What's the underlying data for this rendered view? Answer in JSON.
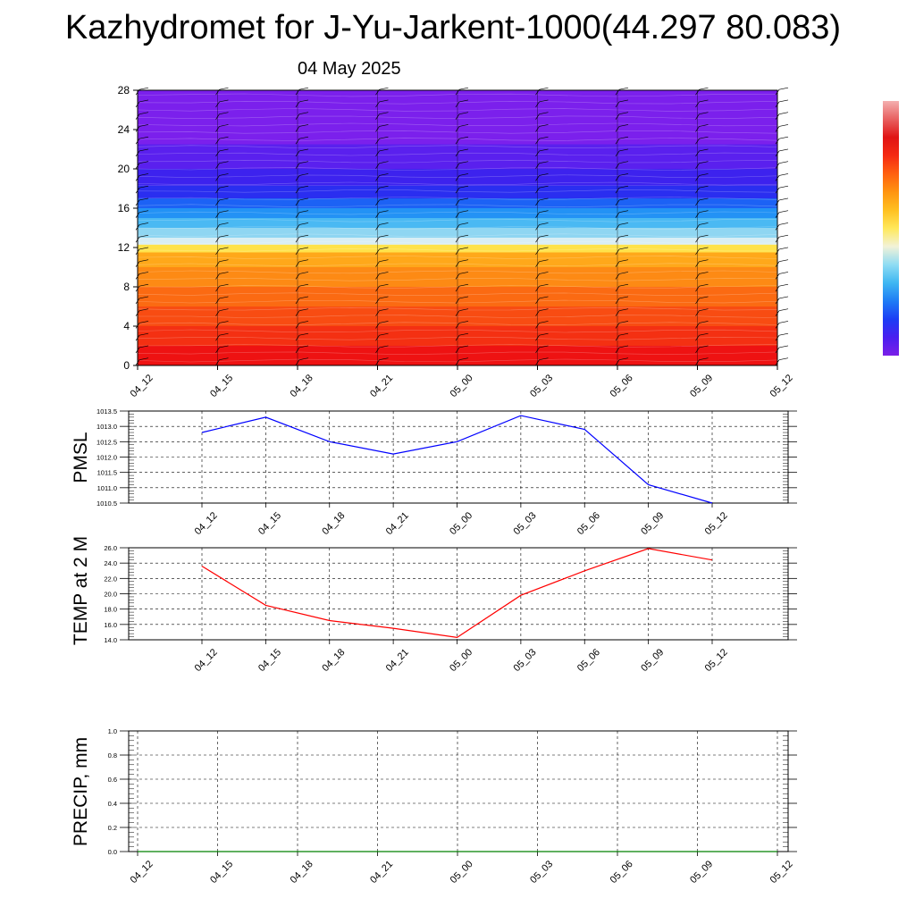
{
  "title": "Kazhydromet for J-Yu-Jarkent-1000(44.297 80.083)",
  "date": "04 May 2025",
  "colorbar": [
    "#7b1fe8",
    "#4a1ff0",
    "#1c3df5",
    "#1f7cf5",
    "#3fb7f2",
    "#8fdcf3",
    "#f2f2d8",
    "#ffe85a",
    "#ffc020",
    "#ff9410",
    "#ff6010",
    "#f52a12",
    "#e01414",
    "#e86060",
    "#f4b0b0"
  ],
  "chart_data": [
    {
      "type": "heatmap",
      "x": [
        "04_12",
        "04_15",
        "04_18",
        "04_21",
        "05_00",
        "05_03",
        "05_06",
        "05_09",
        "05_12"
      ],
      "ylim": [
        0,
        28
      ],
      "yticks": [
        0,
        4,
        8,
        12,
        16,
        20,
        24,
        28
      ],
      "bands": [
        {
          "from": 0,
          "to": 2,
          "color": "#ee1212"
        },
        {
          "from": 2,
          "to": 4,
          "color": "#f43012"
        },
        {
          "from": 4,
          "to": 6,
          "color": "#f84c12"
        },
        {
          "from": 6,
          "to": 8,
          "color": "#fb6a12"
        },
        {
          "from": 8,
          "to": 10,
          "color": "#fd8a14"
        },
        {
          "from": 10,
          "to": 11.5,
          "color": "#ffa81a"
        },
        {
          "from": 11.5,
          "to": 12.3,
          "color": "#ffe24a"
        },
        {
          "from": 12.3,
          "to": 13.0,
          "color": "#d8eef5"
        },
        {
          "from": 13.0,
          "to": 14.0,
          "color": "#8fd6f2"
        },
        {
          "from": 14.0,
          "to": 15.0,
          "color": "#4ab9f3"
        },
        {
          "from": 15.0,
          "to": 16.0,
          "color": "#2392f5"
        },
        {
          "from": 16.0,
          "to": 17.0,
          "color": "#1c62f5"
        },
        {
          "from": 17.0,
          "to": 18.3,
          "color": "#2a2ef0"
        },
        {
          "from": 18.3,
          "to": 20.0,
          "color": "#3d22ee"
        },
        {
          "from": 20.0,
          "to": 22.5,
          "color": "#5a20ee"
        },
        {
          "from": 22.5,
          "to": 28,
          "color": "#7b20ec"
        }
      ]
    },
    {
      "type": "line",
      "ylabel": "PMSL",
      "x": [
        "04_12",
        "04_15",
        "04_18",
        "04_21",
        "05_00",
        "05_03",
        "05_06",
        "05_09",
        "05_12"
      ],
      "series": [
        {
          "values": [
            1012.8,
            1013.3,
            1012.5,
            1012.1,
            1012.5,
            1013.35,
            1012.9,
            1011.1,
            1010.5
          ],
          "color": "#0000ff"
        }
      ],
      "ylim": [
        1010.5,
        1013.5
      ],
      "yticks": [
        "1010.5",
        "1011.0",
        "1011.5",
        "1012.0",
        "1012.5",
        "1013.0",
        "1013.5"
      ]
    },
    {
      "type": "line",
      "ylabel": "TEMP at 2 M",
      "x": [
        "04_12",
        "04_15",
        "04_18",
        "04_21",
        "05_00",
        "05_03",
        "05_06",
        "05_09",
        "05_12"
      ],
      "series": [
        {
          "values": [
            23.6,
            18.5,
            16.5,
            15.5,
            14.3,
            19.8,
            23.0,
            25.9,
            24.4
          ],
          "color": "#ff0000"
        }
      ],
      "ylim": [
        14.0,
        26.0
      ],
      "yticks": [
        "14.0",
        "16.0",
        "18.0",
        "20.0",
        "22.0",
        "24.0",
        "26.0"
      ]
    },
    {
      "type": "line",
      "ylabel": "PRECIP, mm",
      "x": [
        "04_12",
        "04_15",
        "04_18",
        "04_21",
        "05_00",
        "05_03",
        "05_06",
        "05_09",
        "05_12"
      ],
      "series": [
        {
          "values": [
            0,
            0,
            0,
            0,
            0,
            0,
            0,
            0,
            0
          ],
          "color": "#008000"
        }
      ],
      "ylim": [
        0.0,
        1.0
      ],
      "yticks": [
        "0.0",
        "0.2",
        "0.4",
        "0.6",
        "0.8",
        "1.0"
      ]
    }
  ]
}
